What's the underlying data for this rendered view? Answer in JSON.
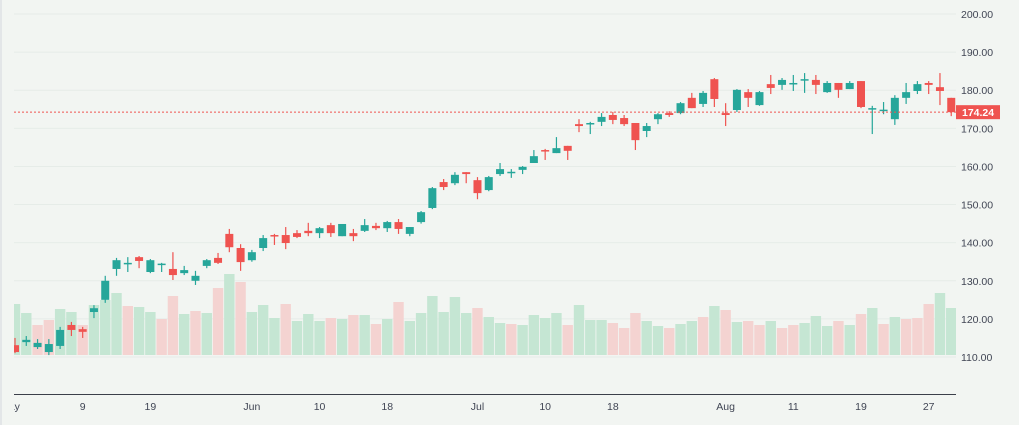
{
  "chart_data": {
    "type": "candlestick",
    "title": "",
    "xlabel": "",
    "ylabel": "",
    "ylim": [
      100,
      202
    ],
    "grid": true,
    "y_ticks": [
      "110.00",
      "120.00",
      "130.00",
      "140.00",
      "150.00",
      "160.00",
      "170.00",
      "180.00",
      "190.00",
      "200.00"
    ],
    "x_ticks": [
      {
        "index": 0,
        "label": "May"
      },
      {
        "index": 6,
        "label": "9"
      },
      {
        "index": 12,
        "label": "19"
      },
      {
        "index": 21,
        "label": "Jun"
      },
      {
        "index": 27,
        "label": "10"
      },
      {
        "index": 33,
        "label": "18"
      },
      {
        "index": 41,
        "label": "Jul"
      },
      {
        "index": 47,
        "label": "10"
      },
      {
        "index": 53,
        "label": "18"
      },
      {
        "index": 63,
        "label": "Aug"
      },
      {
        "index": 69,
        "label": "11"
      },
      {
        "index": 75,
        "label": "19"
      },
      {
        "index": 81,
        "label": "27"
      }
    ],
    "last_price": "174.24",
    "last_price_value": 174.24,
    "colors": {
      "up": "#26a69a",
      "down": "#ef5350",
      "volume_up": "#c5e6d3",
      "volume_down": "#f4d3d1",
      "background": "#f2f5f2"
    },
    "ohlc": [
      [
        113.1,
        115.0,
        111.0,
        111.3
      ],
      [
        113.9,
        115.5,
        112.9,
        114.5
      ],
      [
        112.6,
        114.7,
        112.1,
        113.7
      ],
      [
        111.3,
        114.7,
        110.5,
        113.4
      ],
      [
        112.9,
        117.9,
        112.1,
        117.1
      ],
      [
        118.4,
        119.2,
        115.5,
        117.1
      ],
      [
        117.3,
        117.9,
        115.0,
        116.6
      ],
      [
        121.8,
        123.6,
        120.2,
        122.8
      ],
      [
        125.0,
        131.3,
        124.2,
        130.0
      ],
      [
        133.1,
        136.0,
        131.3,
        135.4
      ],
      [
        134.4,
        136.2,
        132.3,
        134.7
      ],
      [
        136.2,
        136.5,
        133.3,
        135.2
      ],
      [
        132.3,
        135.7,
        132.0,
        135.4
      ],
      [
        134.4,
        134.7,
        132.3,
        134.5
      ],
      [
        133.1,
        137.5,
        130.2,
        131.5
      ],
      [
        132.0,
        133.9,
        131.5,
        132.8
      ],
      [
        130.0,
        132.6,
        128.9,
        131.3
      ],
      [
        133.9,
        135.7,
        133.3,
        135.4
      ],
      [
        136.0,
        137.3,
        134.4,
        134.7
      ],
      [
        142.3,
        143.6,
        137.5,
        138.8
      ],
      [
        138.6,
        139.6,
        132.6,
        134.9
      ],
      [
        135.4,
        138.1,
        135.0,
        137.5
      ],
      [
        138.6,
        142.0,
        137.8,
        141.2
      ],
      [
        142.0,
        142.3,
        139.4,
        141.7
      ],
      [
        142.0,
        144.1,
        138.3,
        139.9
      ],
      [
        142.5,
        143.3,
        141.2,
        141.5
      ],
      [
        143.1,
        145.2,
        141.7,
        142.5
      ],
      [
        142.5,
        144.1,
        141.2,
        143.8
      ],
      [
        144.6,
        145.2,
        141.5,
        142.5
      ],
      [
        141.7,
        144.9,
        141.7,
        144.9
      ],
      [
        142.5,
        143.6,
        140.4,
        141.7
      ],
      [
        143.1,
        146.2,
        142.8,
        144.6
      ],
      [
        144.4,
        145.2,
        143.3,
        143.8
      ],
      [
        143.8,
        145.7,
        142.8,
        145.4
      ],
      [
        145.4,
        146.2,
        142.3,
        143.6
      ],
      [
        142.3,
        144.1,
        141.7,
        144.1
      ],
      [
        145.4,
        148.3,
        145.0,
        148.0
      ],
      [
        149.1,
        154.6,
        148.8,
        154.3
      ],
      [
        155.9,
        156.7,
        153.8,
        154.6
      ],
      [
        155.6,
        158.5,
        155.1,
        157.8
      ],
      [
        158.5,
        158.5,
        155.6,
        158.0
      ],
      [
        156.4,
        157.2,
        151.4,
        153.0
      ],
      [
        153.8,
        157.5,
        153.5,
        157.2
      ],
      [
        158.0,
        160.9,
        157.5,
        159.3
      ],
      [
        158.4,
        159.3,
        157.0,
        158.6
      ],
      [
        159.1,
        160.1,
        158.0,
        159.9
      ],
      [
        160.9,
        164.3,
        160.9,
        162.7
      ],
      [
        164.3,
        164.6,
        161.7,
        164.1
      ],
      [
        163.5,
        167.7,
        163.5,
        164.8
      ],
      [
        165.4,
        165.4,
        161.7,
        164.1
      ],
      [
        171.1,
        172.4,
        169.0,
        170.6
      ],
      [
        171.1,
        171.7,
        168.5,
        171.4
      ],
      [
        171.7,
        174.0,
        170.6,
        173.0
      ],
      [
        173.5,
        174.3,
        171.1,
        172.2
      ],
      [
        172.7,
        173.5,
        170.6,
        171.1
      ],
      [
        171.4,
        171.4,
        164.3,
        166.9
      ],
      [
        169.3,
        171.4,
        167.7,
        170.6
      ],
      [
        172.4,
        174.0,
        171.1,
        173.7
      ],
      [
        174.0,
        174.5,
        173.0,
        173.5
      ],
      [
        174.0,
        176.9,
        173.7,
        176.6
      ],
      [
        178.0,
        179.3,
        175.3,
        175.3
      ],
      [
        176.4,
        179.8,
        175.6,
        179.3
      ],
      [
        182.9,
        183.2,
        175.6,
        177.7
      ],
      [
        174.0,
        176.6,
        170.6,
        173.5
      ],
      [
        174.8,
        180.3,
        174.3,
        180.1
      ],
      [
        179.5,
        180.3,
        175.6,
        178.0
      ],
      [
        176.1,
        179.8,
        175.9,
        179.5
      ],
      [
        181.6,
        184.0,
        179.0,
        180.6
      ],
      [
        181.4,
        183.2,
        180.1,
        182.7
      ],
      [
        181.8,
        184.0,
        179.8,
        181.9
      ],
      [
        182.7,
        184.5,
        179.3,
        182.9
      ],
      [
        182.7,
        184.0,
        179.0,
        181.4
      ],
      [
        179.5,
        182.4,
        179.3,
        181.9
      ],
      [
        181.9,
        181.9,
        178.0,
        180.1
      ],
      [
        180.3,
        182.4,
        180.3,
        181.9
      ],
      [
        182.4,
        182.4,
        175.3,
        175.6
      ],
      [
        175.1,
        175.9,
        168.5,
        175.3
      ],
      [
        174.8,
        176.9,
        173.7,
        174.9
      ],
      [
        172.4,
        178.7,
        170.9,
        178.0
      ],
      [
        178.0,
        181.9,
        176.4,
        179.5
      ],
      [
        179.8,
        182.4,
        179.0,
        181.6
      ],
      [
        181.9,
        182.4,
        179.0,
        181.4
      ],
      [
        180.8,
        184.5,
        176.1,
        179.8
      ],
      [
        178.0,
        178.0,
        173.2,
        174.24
      ]
    ],
    "volume": [
      51,
      42,
      30,
      35,
      46,
      43,
      30,
      50,
      55,
      62,
      49,
      48,
      43,
      36,
      59,
      41,
      44,
      42,
      67,
      81,
      73,
      43,
      50,
      37,
      51,
      34,
      41,
      34,
      37,
      36,
      40,
      40,
      31,
      36,
      53,
      34,
      42,
      59,
      43,
      58,
      42,
      47,
      38,
      32,
      31,
      30,
      40,
      37,
      42,
      30,
      50,
      35,
      35,
      32,
      27,
      42,
      34,
      29,
      27,
      31,
      34,
      38,
      49,
      45,
      33,
      34,
      30,
      34,
      27,
      30,
      32,
      39,
      29,
      34,
      30,
      41,
      47,
      31,
      38,
      36,
      37,
      51,
      62,
      47
    ],
    "volume_direction": "uudduuduuuduuddudududuuuduuududududuuuuuuduuduuuuduuudddu uduudududdudduuududududdduuudddd"
  }
}
